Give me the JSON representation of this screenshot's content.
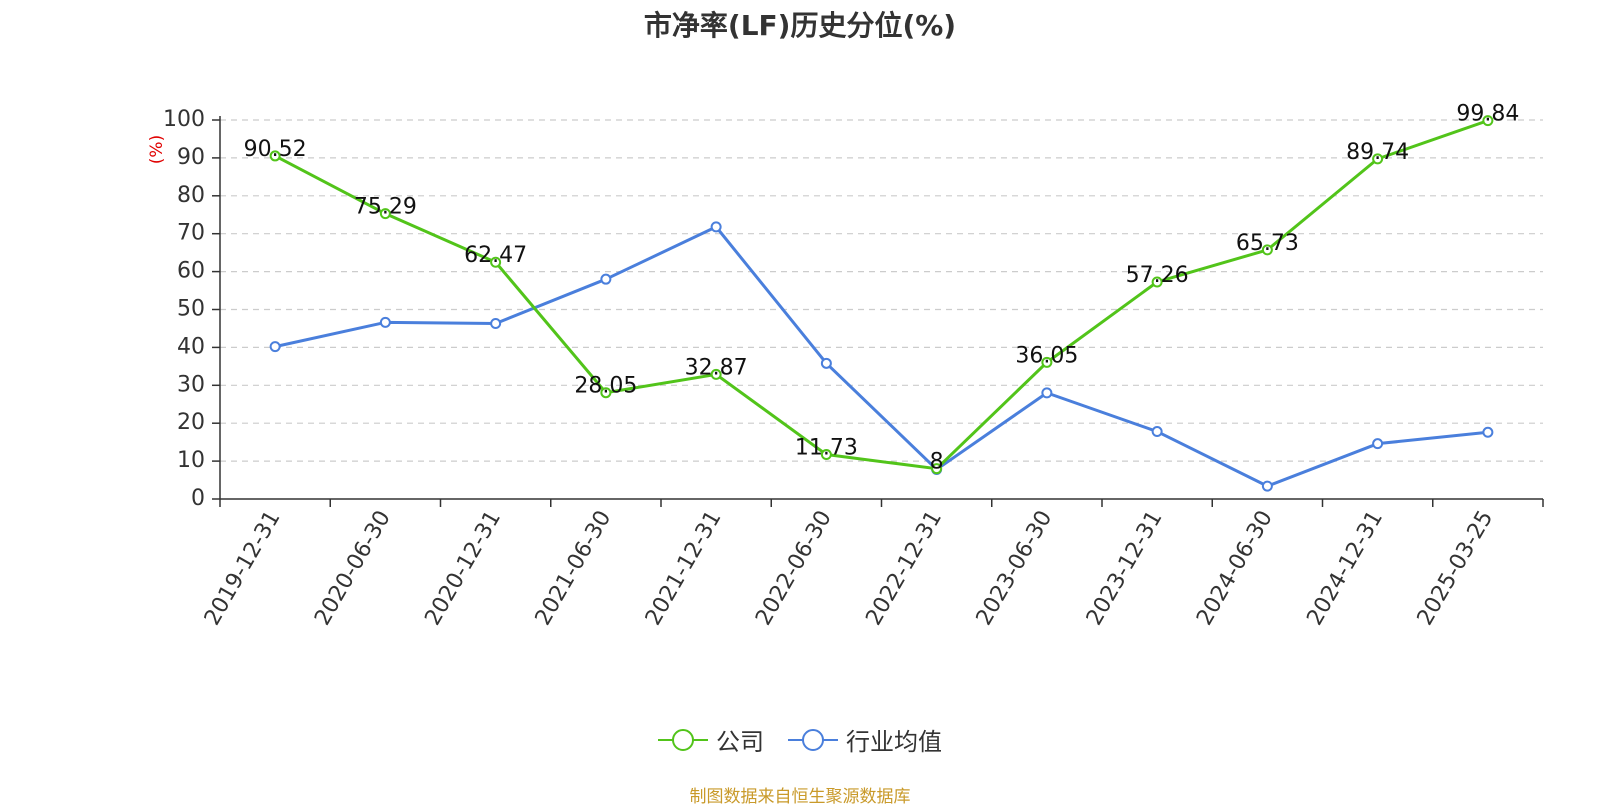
{
  "chart_data": {
    "type": "line",
    "title": "市净率(LF)历史分位(%)",
    "ylabel": "(%)",
    "xlabel": "",
    "ylim": [
      0,
      100
    ],
    "yticks": [
      0,
      10,
      20,
      30,
      40,
      50,
      60,
      70,
      80,
      90,
      100
    ],
    "categories": [
      "2019-12-31",
      "2020-06-30",
      "2020-12-31",
      "2021-06-30",
      "2021-12-31",
      "2022-06-30",
      "2022-12-31",
      "2023-06-30",
      "2023-12-31",
      "2024-06-30",
      "2024-12-31",
      "2025-03-25"
    ],
    "grid": true,
    "legend_position": "bottom-center",
    "series": [
      {
        "name": "公司",
        "color": "#52c41a",
        "values": [
          90.52,
          75.29,
          62.47,
          28.05,
          32.87,
          11.73,
          8,
          36.05,
          57.26,
          65.73,
          89.74,
          99.84
        ],
        "labels": [
          "90.52",
          "75.29",
          "62.47",
          "28.05",
          "32.87",
          "11.73",
          "8",
          "36.05",
          "57.26",
          "65.73",
          "89.74",
          "99.84"
        ]
      },
      {
        "name": "行业均值",
        "color": "#4a7fdc",
        "values": [
          40.2,
          46.6,
          46.3,
          58.0,
          71.8,
          35.8,
          7.8,
          28.0,
          17.8,
          3.4,
          14.6,
          17.6
        ]
      }
    ]
  },
  "source_note": "制图数据来自恒生聚源数据库"
}
